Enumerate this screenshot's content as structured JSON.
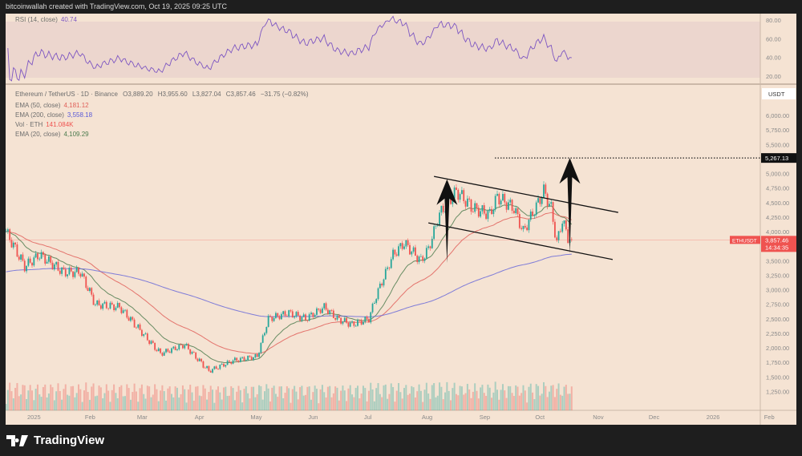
{
  "header": {
    "credit": "bitcoinwallah created with TradingView.com, Oct 19, 2025 09:25 UTC"
  },
  "rsi_legend": {
    "label": "RSI (14, close)",
    "value": "40.74"
  },
  "legend": {
    "symbol": "Ethereum / TetherUS · 1D · Binance",
    "open": "O3,889.20",
    "high": "H3,955.60",
    "low": "L3,827.04",
    "close": "C3,857.46",
    "change": "−31.75 (−0.82%)",
    "ema50": {
      "label": "EMA (50, close)",
      "value": "4,181.12"
    },
    "ema200": {
      "label": "EMA (200, close)",
      "value": "3,558.18"
    },
    "vol": {
      "label": "Vol · ETH",
      "value": "141.084K"
    },
    "ema20": {
      "label": "EMA (20, close)",
      "value": "4,109.29"
    }
  },
  "colors": {
    "up": "#26a69a",
    "down": "#ef5350",
    "ema20": "#4d7c4f",
    "ema50": "#e0605a",
    "ema200": "#6a6ad8",
    "rsi": "#7e57c2",
    "background": "#f5e3d3"
  },
  "logo": {
    "text": "TradingView"
  },
  "chart_data": {
    "type": "candlestick",
    "title": "",
    "currency_label": "USDT",
    "y_ticks": [
      "6,000.00",
      "5,750.00",
      "5,500.00",
      "5,000.00",
      "4,750.00",
      "4,500.00",
      "4,250.00",
      "4,000.00",
      "3,500.00",
      "3,250.00",
      "3,000.00",
      "2,750.00",
      "2,500.00",
      "2,250.00",
      "2,000.00",
      "1,750.00",
      "1,500.00",
      "1,250.00"
    ],
    "y_tick_values": [
      6000,
      5750,
      5500,
      5000,
      4750,
      4500,
      4250,
      4000,
      3500,
      3250,
      3000,
      2750,
      2500,
      2250,
      2000,
      1750,
      1500,
      1250
    ],
    "rsi_ticks": [
      "80.00",
      "60.00",
      "40.00",
      "20.00"
    ],
    "rsi_tick_values": [
      80,
      60,
      40,
      20
    ],
    "x_ticks": [
      "2025",
      "Feb",
      "Mar",
      "Apr",
      "May",
      "Jun",
      "Jul",
      "Aug",
      "Sep",
      "Oct",
      "Nov",
      "Dec",
      "2026",
      "Feb"
    ],
    "x_tick_dates": [
      "2025-01-01",
      "2025-02-01",
      "2025-03-01",
      "2025-04-01",
      "2025-05-01",
      "2025-06-01",
      "2025-07-01",
      "2025-08-01",
      "2025-09-01",
      "2025-10-01",
      "2025-11-01",
      "2025-12-01",
      "2026-01-01",
      "2026-02-01"
    ],
    "close_series": {
      "dates": [
        "2024-12-18",
        "2024-12-28",
        "2025-01-05",
        "2025-01-18",
        "2025-01-27",
        "2025-02-04",
        "2025-02-17",
        "2025-02-28",
        "2025-03-11",
        "2025-03-24",
        "2025-04-06",
        "2025-04-19",
        "2025-05-02",
        "2025-05-08",
        "2025-05-19",
        "2025-05-28",
        "2025-06-07",
        "2025-06-14",
        "2025-06-22",
        "2025-07-01",
        "2025-07-05",
        "2025-07-14",
        "2025-07-20",
        "2025-07-29",
        "2025-08-02",
        "2025-08-08",
        "2025-08-17",
        "2025-08-26",
        "2025-09-04",
        "2025-09-08",
        "2025-09-17",
        "2025-09-22",
        "2025-09-30",
        "2025-10-03",
        "2025-10-07",
        "2025-10-10",
        "2025-10-13",
        "2025-10-16",
        "2025-10-18"
      ],
      "values": [
        4000,
        3400,
        3600,
        3300,
        3300,
        2750,
        2700,
        2300,
        1900,
        2050,
        1600,
        1780,
        1850,
        2500,
        2600,
        2500,
        2700,
        2500,
        2400,
        2500,
        2900,
        3600,
        3800,
        3500,
        3700,
        4300,
        4700,
        4400,
        4300,
        4600,
        4400,
        4000,
        4500,
        4700,
        4400,
        3800,
        4200,
        3900,
        3857.46
      ]
    },
    "last_price": {
      "symbol": "ETHUSDT",
      "value": "3,857.46",
      "countdown": "14:34:35",
      "numeric": 3857.46
    },
    "target_price": {
      "value": "5,267.13",
      "numeric": 5267.13
    },
    "channel": {
      "upper": [
        [
          "2025-08-05",
          4950
        ],
        [
          "2025-11-12",
          4330
        ]
      ],
      "lower": [
        [
          "2025-08-02",
          4150
        ],
        [
          "2025-11-09",
          3520
        ]
      ]
    },
    "arrows": [
      {
        "from": [
          "2025-08-12",
          3460
        ],
        "to": [
          "2025-08-12",
          4900
        ]
      },
      {
        "from": [
          "2025-10-17",
          3620
        ],
        "to": [
          "2025-10-17",
          5267
        ]
      }
    ]
  }
}
